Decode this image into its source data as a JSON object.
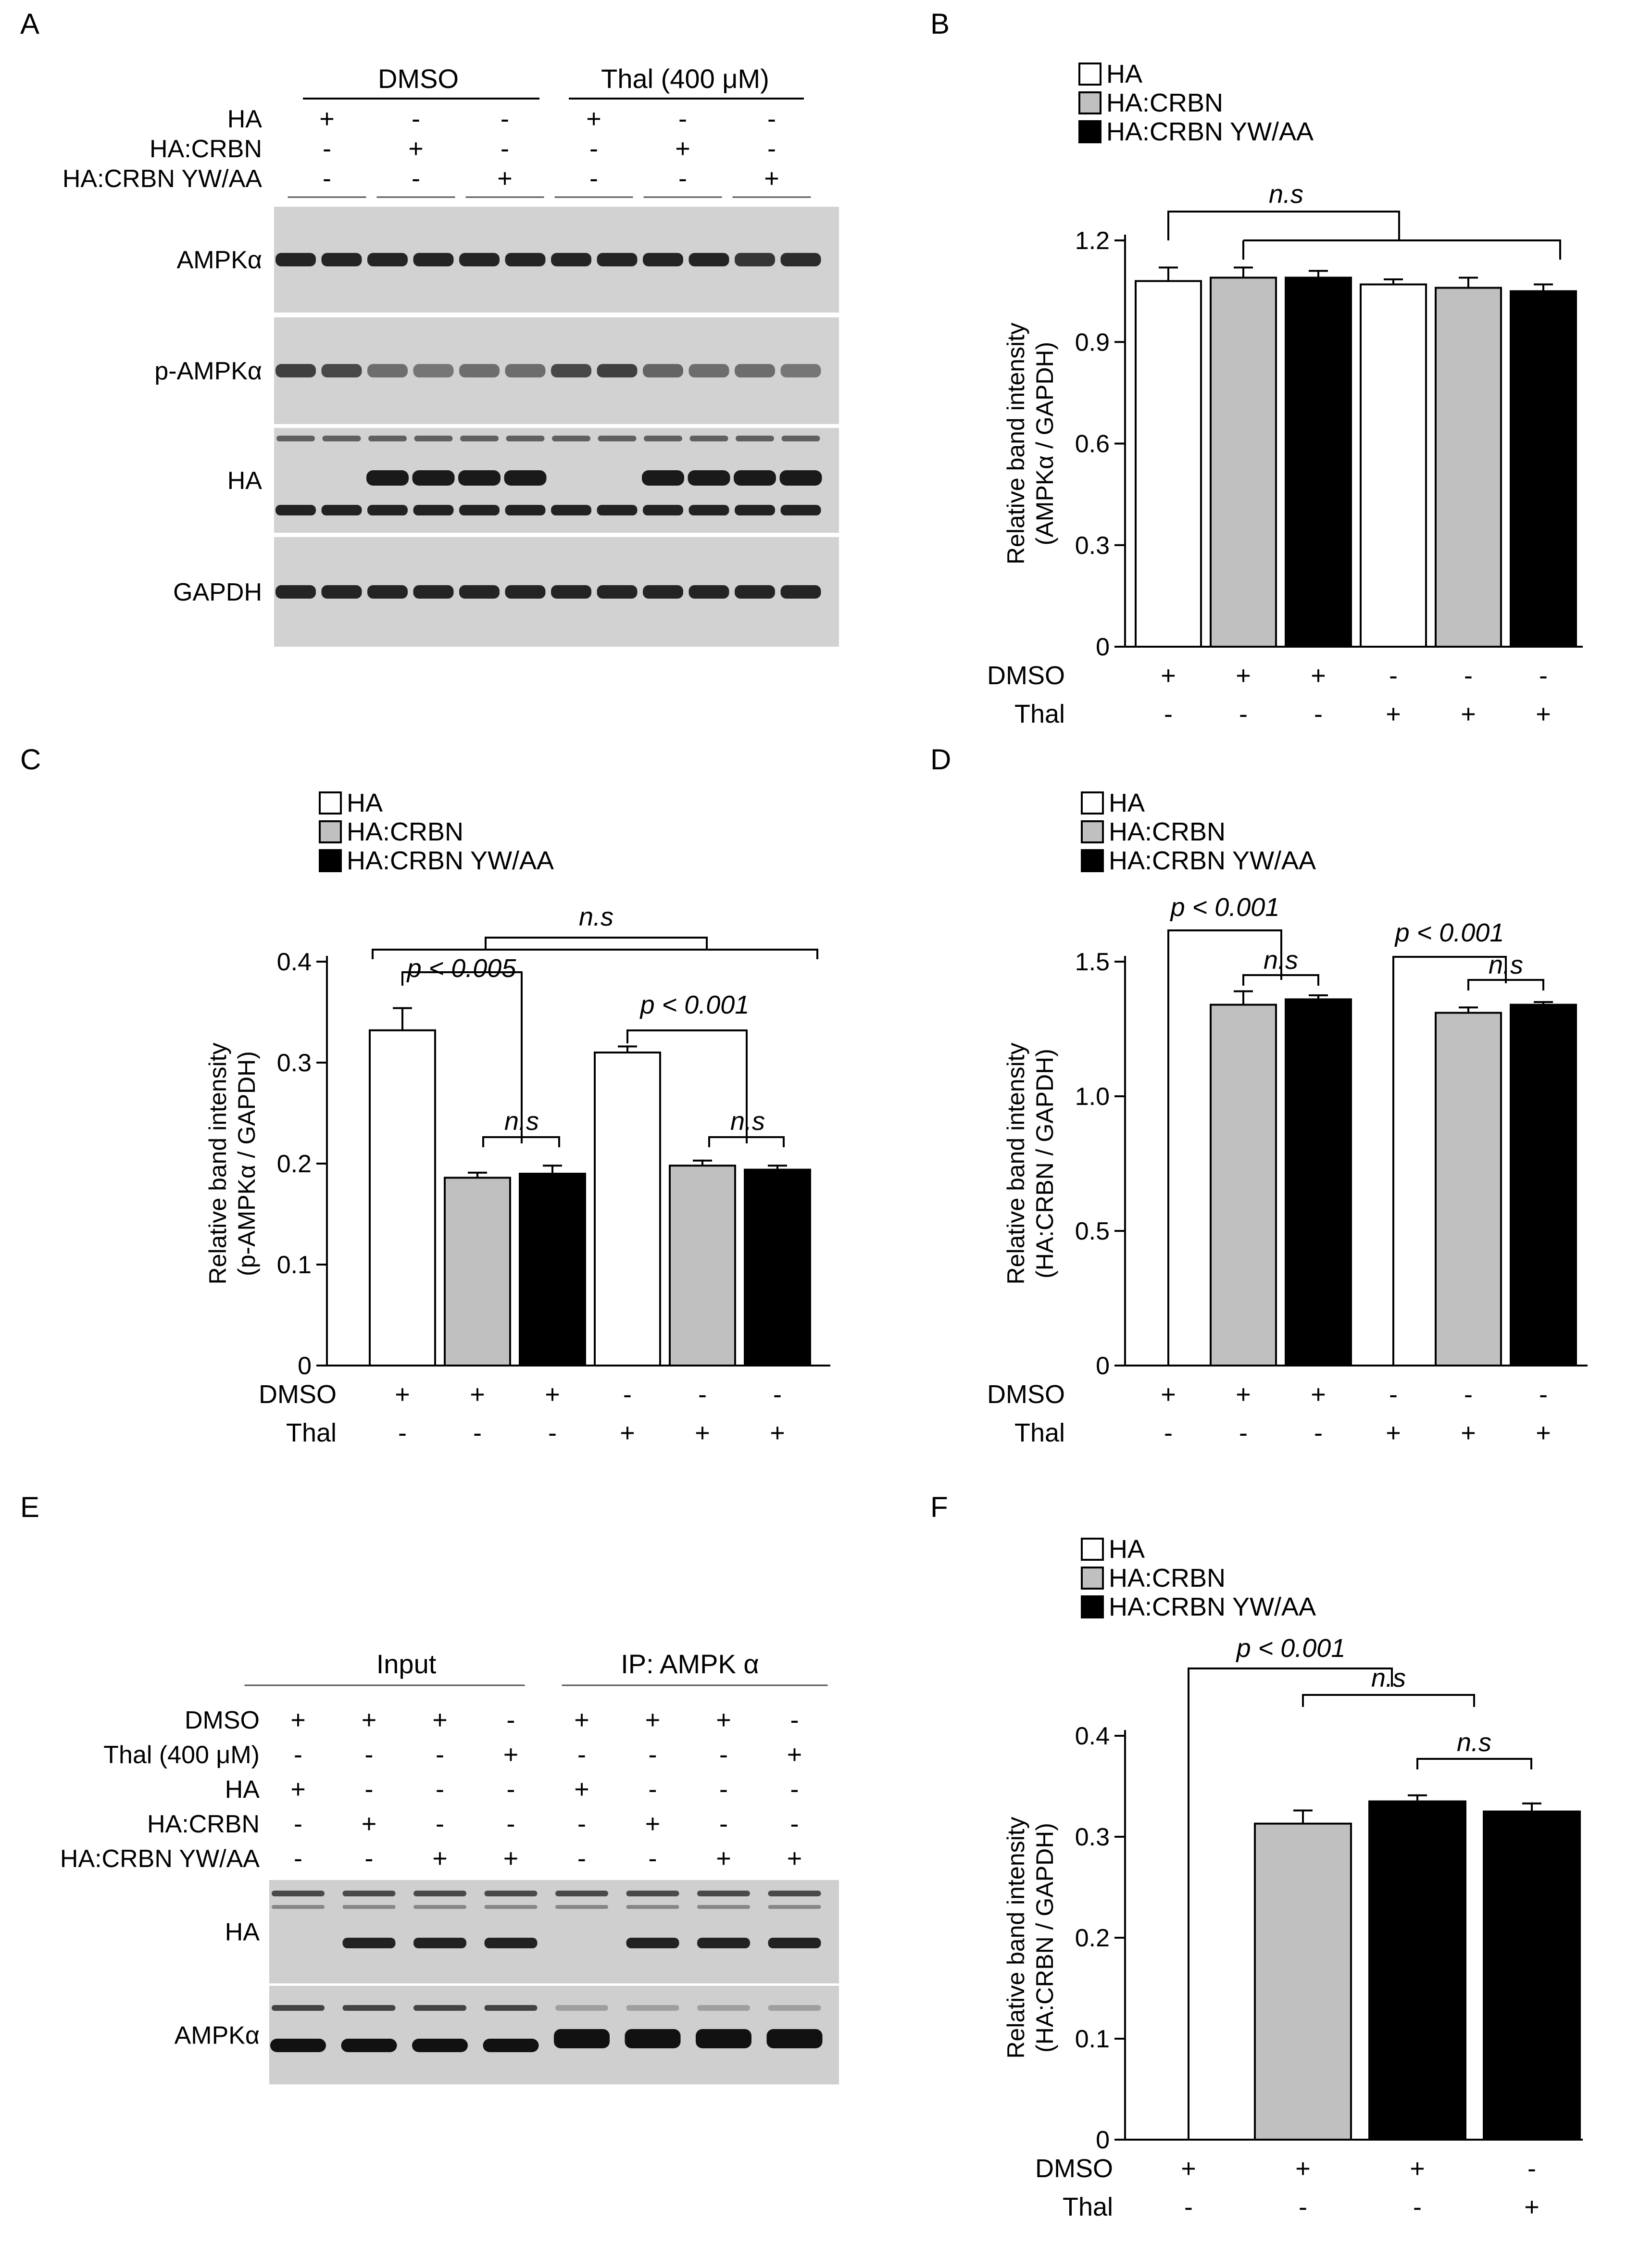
{
  "panels": {
    "A": {
      "letter": "A",
      "groups": [
        "DMSO",
        "Thal (400 μM)"
      ],
      "rows": [
        {
          "label": "HA",
          "marks": [
            "+",
            "-",
            "-",
            "+",
            "-",
            "-"
          ]
        },
        {
          "label": "HA:CRBN",
          "marks": [
            "-",
            "+",
            "-",
            "-",
            "+",
            "-"
          ]
        },
        {
          "label": "HA:CRBN YW/AA",
          "marks": [
            "-",
            "-",
            "+",
            "-",
            "-",
            "+"
          ]
        }
      ],
      "blots": [
        {
          "label": "AMPKα",
          "kind": "uniform",
          "intensity": [
            0.95,
            0.95,
            0.95,
            0.95,
            0.95,
            0.95,
            0.95,
            0.95,
            0.95,
            0.95,
            0.85,
            0.9
          ]
        },
        {
          "label": "p-AMPKα",
          "kind": "uniform",
          "intensity": [
            0.8,
            0.75,
            0.55,
            0.5,
            0.55,
            0.55,
            0.75,
            0.8,
            0.6,
            0.55,
            0.55,
            0.5
          ]
        },
        {
          "label": "HA",
          "kind": "ha",
          "intensity": [
            0.0,
            0.0,
            1,
            1,
            1,
            1,
            0.0,
            0.0,
            1,
            1,
            1,
            1
          ]
        },
        {
          "label": "GAPDH",
          "kind": "uniform",
          "intensity": [
            0.95,
            0.95,
            0.95,
            0.95,
            0.95,
            0.95,
            0.95,
            0.95,
            0.95,
            0.95,
            0.95,
            0.95
          ]
        }
      ]
    },
    "E": {
      "letter": "E",
      "groups": [
        "Input",
        "IP: AMPK α"
      ],
      "rows": [
        {
          "label": "DMSO",
          "marks": [
            "+",
            "+",
            "+",
            "-",
            "+",
            "+",
            "+",
            "-"
          ]
        },
        {
          "label": "Thal (400 μM)",
          "marks": [
            "-",
            "-",
            "-",
            "+",
            "-",
            "-",
            "-",
            "+"
          ]
        },
        {
          "label": "HA",
          "marks": [
            "+",
            "-",
            "-",
            "-",
            "+",
            "-",
            "-",
            "-"
          ]
        },
        {
          "label": "HA:CRBN",
          "marks": [
            "-",
            "+",
            "-",
            "-",
            "-",
            "+",
            "-",
            "-"
          ]
        },
        {
          "label": "HA:CRBN YW/AA",
          "marks": [
            "-",
            "-",
            "+",
            "+",
            "-",
            "-",
            "+",
            "+"
          ]
        }
      ],
      "blots": [
        {
          "label": "HA"
        },
        {
          "label": "AMPKα"
        }
      ]
    }
  },
  "legend": {
    "items": [
      "HA",
      "HA:CRBN",
      "HA:CRBN YW/AA"
    ]
  },
  "colors": {
    "HA": "#ffffff",
    "HA:CRBN": "#c0c0c0",
    "HA:CRBN YW/AA": "#000000"
  },
  "chart_data": [
    {
      "panel": "B",
      "type": "bar",
      "ylabel": [
        "Relative band intensity",
        "(AMPKα / GAPDH)"
      ],
      "ylim": [
        0,
        1.2
      ],
      "yticks": [
        "0",
        "0.3",
        "0.6",
        "0.9",
        "1.2"
      ],
      "bars": [
        {
          "series": "HA",
          "value": 1.08,
          "err": 0.04
        },
        {
          "series": "HA:CRBN",
          "value": 1.09,
          "err": 0.03
        },
        {
          "series": "HA:CRBN YW/AA",
          "value": 1.09,
          "err": 0.02
        },
        {
          "series": "HA",
          "value": 1.07,
          "err": 0.015
        },
        {
          "series": "HA:CRBN",
          "value": 1.06,
          "err": 0.03
        },
        {
          "series": "HA:CRBN YW/AA",
          "value": 1.05,
          "err": 0.02
        }
      ],
      "conditions": [
        {
          "label": "DMSO",
          "marks": [
            "+",
            "+",
            "+",
            "-",
            "-",
            "-"
          ]
        },
        {
          "label": "Thal",
          "marks": [
            "-",
            "-",
            "-",
            "+",
            "+",
            "+"
          ]
        }
      ],
      "annotations": [
        {
          "text": "n.s"
        }
      ]
    },
    {
      "panel": "C",
      "type": "bar",
      "ylabel": [
        "Relative band intensity",
        "(p-AMPKα / GAPDH)"
      ],
      "ylim": [
        0,
        0.4
      ],
      "yticks": [
        "0",
        "0.1",
        "0.2",
        "0.3",
        "0.4"
      ],
      "bars": [
        {
          "series": "HA",
          "value": 0.332,
          "err": 0.022
        },
        {
          "series": "HA:CRBN",
          "value": 0.186,
          "err": 0.005
        },
        {
          "series": "HA:CRBN YW/AA",
          "value": 0.19,
          "err": 0.008
        },
        {
          "series": "HA",
          "value": 0.31,
          "err": 0.006
        },
        {
          "series": "HA:CRBN",
          "value": 0.198,
          "err": 0.005
        },
        {
          "series": "HA:CRBN YW/AA",
          "value": 0.194,
          "err": 0.004
        }
      ],
      "conditions": [
        {
          "label": "DMSO",
          "marks": [
            "+",
            "+",
            "+",
            "-",
            "-",
            "-"
          ]
        },
        {
          "label": "Thal",
          "marks": [
            "-",
            "-",
            "-",
            "+",
            "+",
            "+"
          ]
        }
      ],
      "annotations": [
        {
          "text": "n.s"
        },
        {
          "text": "p < 0.005"
        },
        {
          "text": "n.s"
        },
        {
          "text": "p < 0.001"
        },
        {
          "text": "n.s"
        }
      ]
    },
    {
      "panel": "D",
      "type": "bar",
      "ylabel": [
        "Relative band intensity",
        "(HA:CRBN / GAPDH)"
      ],
      "ylim": [
        0,
        1.5
      ],
      "yticks": [
        "0",
        "0.5",
        "1.0",
        "1.5"
      ],
      "bars": [
        {
          "series": "HA",
          "value": 0,
          "err": 0
        },
        {
          "series": "HA:CRBN",
          "value": 1.34,
          "err": 0.05
        },
        {
          "series": "HA:CRBN YW/AA",
          "value": 1.36,
          "err": 0.015
        },
        {
          "series": "HA",
          "value": 0,
          "err": 0
        },
        {
          "series": "HA:CRBN",
          "value": 1.31,
          "err": 0.02
        },
        {
          "series": "HA:CRBN YW/AA",
          "value": 1.34,
          "err": 0.01
        }
      ],
      "conditions": [
        {
          "label": "DMSO",
          "marks": [
            "+",
            "+",
            "+",
            "-",
            "-",
            "-"
          ]
        },
        {
          "label": "Thal",
          "marks": [
            "-",
            "-",
            "-",
            "+",
            "+",
            "+"
          ]
        }
      ],
      "annotations": [
        {
          "text": "p < 0.001"
        },
        {
          "text": "n.s"
        },
        {
          "text": "p < 0.001"
        },
        {
          "text": "n.s"
        }
      ]
    },
    {
      "panel": "F",
      "type": "bar",
      "ylabel": [
        "Relative band intensity",
        "(HA:CRBN / GAPDH)"
      ],
      "ylim": [
        0,
        0.4
      ],
      "yticks": [
        "0",
        "0.1",
        "0.2",
        "0.3",
        "0.4"
      ],
      "bars": [
        {
          "series": "HA",
          "value": 0,
          "err": 0
        },
        {
          "series": "HA:CRBN",
          "value": 0.313,
          "err": 0.013
        },
        {
          "series": "HA:CRBN YW/AA",
          "value": 0.335,
          "err": 0.006
        },
        {
          "series": "HA:CRBN YW/AA",
          "value": 0.325,
          "err": 0.008
        }
      ],
      "conditions": [
        {
          "label": "DMSO",
          "marks": [
            "+",
            "+",
            "+",
            "-"
          ]
        },
        {
          "label": "Thal",
          "marks": [
            "-",
            "-",
            "-",
            "+"
          ]
        }
      ],
      "annotations": [
        {
          "text": "p < 0.001"
        },
        {
          "text": "n.s"
        },
        {
          "text": "n.s"
        }
      ]
    }
  ]
}
